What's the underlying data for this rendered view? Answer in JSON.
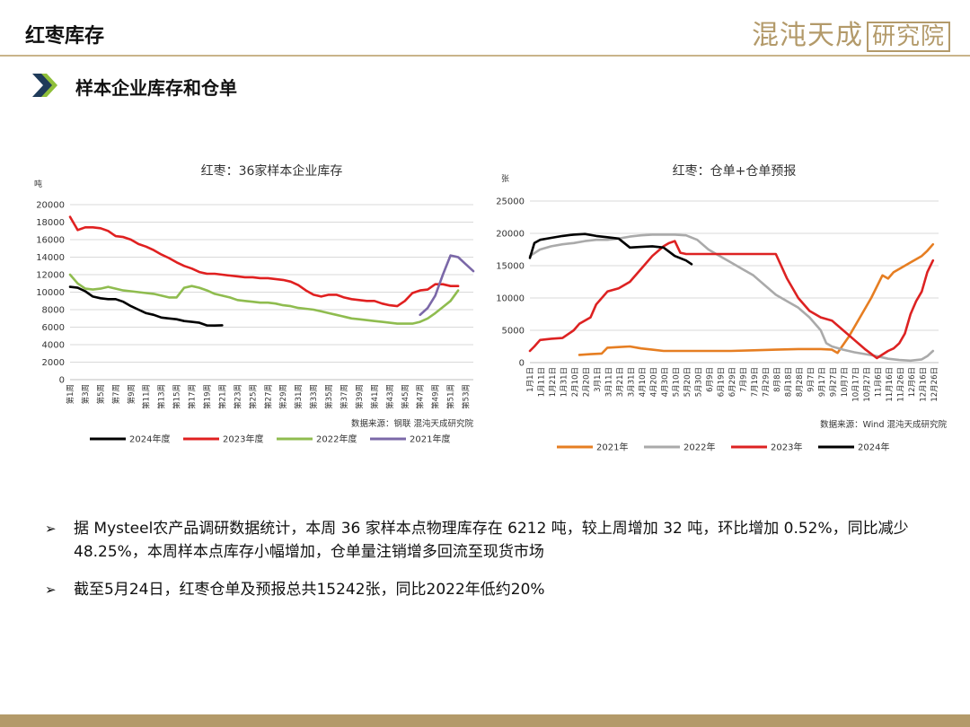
{
  "header": {
    "title": "红枣库存",
    "logo_text": "混沌天成",
    "logo_boxed": "研究院"
  },
  "section": {
    "title": "样本企业库存和仓单"
  },
  "colors": {
    "accent": "#b39a6a",
    "arrow": "#1f3b5a",
    "arrow_light": "#8fbf3a"
  },
  "chart_data": [
    {
      "type": "line",
      "title": "红枣：36家样本企业库存",
      "ylabel": "吨",
      "source": "数据来源：钢联  混沌天成研究院",
      "ylim": [
        0,
        20000
      ],
      "yticks": [
        0,
        2000,
        4000,
        6000,
        8000,
        10000,
        12000,
        14000,
        16000,
        18000,
        20000
      ],
      "categories": [
        "第1周",
        "第3周",
        "第5周",
        "第7周",
        "第9周",
        "第11周",
        "第13周",
        "第15周",
        "第17周",
        "第19周",
        "第21周",
        "第23周",
        "第25周",
        "第27周",
        "第29周",
        "第31周",
        "第33周",
        "第35周",
        "第37周",
        "第39周",
        "第41周",
        "第43周",
        "第45周",
        "第47周",
        "第49周",
        "第51周",
        "第53周"
      ],
      "legend_position": "bottom",
      "series": [
        {
          "name": "2024年度",
          "color": "#000000",
          "x": [
            1,
            2,
            3,
            4,
            5,
            6,
            7,
            8,
            9,
            10,
            11,
            12,
            13,
            14,
            15,
            16,
            17,
            18,
            19,
            20,
            21
          ],
          "values": [
            10600,
            10500,
            10100,
            9500,
            9300,
            9200,
            9200,
            8900,
            8400,
            8000,
            7600,
            7400,
            7100,
            7000,
            6900,
            6700,
            6600,
            6500,
            6200,
            6180,
            6212
          ]
        },
        {
          "name": "2023年度",
          "color": "#e02020",
          "x": [
            1,
            2,
            3,
            4,
            5,
            6,
            7,
            8,
            9,
            10,
            11,
            12,
            13,
            14,
            15,
            16,
            17,
            18,
            19,
            20,
            21,
            22,
            23,
            24,
            25,
            26,
            27,
            28,
            29,
            30,
            31,
            32,
            33,
            34,
            35,
            36,
            37,
            38,
            39,
            40,
            41,
            42,
            43,
            44,
            45,
            46,
            47,
            48,
            49,
            50,
            51,
            52
          ],
          "values": [
            18600,
            17100,
            17400,
            17400,
            17300,
            17000,
            16400,
            16300,
            16000,
            15500,
            15200,
            14800,
            14300,
            13900,
            13400,
            13000,
            12700,
            12300,
            12100,
            12100,
            12000,
            11900,
            11800,
            11700,
            11700,
            11600,
            11600,
            11500,
            11400,
            11200,
            10800,
            10200,
            9700,
            9500,
            9700,
            9700,
            9400,
            9200,
            9100,
            9000,
            9000,
            8700,
            8500,
            8400,
            9000,
            9900,
            10200,
            10300,
            10900,
            10900,
            10700,
            10700
          ]
        },
        {
          "name": "2022年度",
          "color": "#8fbc4f",
          "x": [
            1,
            2,
            3,
            4,
            5,
            6,
            7,
            8,
            9,
            10,
            11,
            12,
            13,
            14,
            15,
            16,
            17,
            18,
            19,
            20,
            21,
            22,
            23,
            24,
            25,
            26,
            27,
            28,
            29,
            30,
            31,
            32,
            33,
            34,
            35,
            36,
            37,
            38,
            39,
            40,
            41,
            42,
            43,
            44,
            45,
            46,
            47,
            48,
            49,
            50,
            51,
            52
          ],
          "values": [
            12000,
            11000,
            10400,
            10300,
            10400,
            10600,
            10400,
            10200,
            10100,
            10000,
            9900,
            9800,
            9600,
            9400,
            9400,
            10500,
            10700,
            10500,
            10200,
            9800,
            9600,
            9400,
            9100,
            9000,
            8900,
            8800,
            8800,
            8700,
            8500,
            8400,
            8200,
            8100,
            8000,
            7800,
            7600,
            7400,
            7200,
            7000,
            6900,
            6800,
            6700,
            6600,
            6500,
            6400,
            6400,
            6400,
            6600,
            7000,
            7600,
            8300,
            9000,
            10200
          ]
        },
        {
          "name": "2021年度",
          "color": "#7b68a8",
          "x": [
            47,
            48,
            49,
            50,
            51,
            52,
            53,
            54
          ],
          "values": [
            7400,
            8200,
            9600,
            12000,
            14200,
            14000,
            13200,
            12400
          ]
        }
      ]
    },
    {
      "type": "line",
      "title": "红枣：仓单+仓单预报",
      "ylabel": "张",
      "source": "数据来源：Wind  混沌天成研究院",
      "ylim": [
        0,
        25000
      ],
      "yticks": [
        0,
        5000,
        10000,
        15000,
        20000,
        25000
      ],
      "xtick_labels": [
        "1月1日",
        "1月11日",
        "1月21日",
        "1月31日",
        "2月10日",
        "2月20日",
        "3月1日",
        "3月11日",
        "3月21日",
        "3月31日",
        "4月10日",
        "4月20日",
        "4月30日",
        "5月10日",
        "5月20日",
        "5月30日",
        "6月9日",
        "6月19日",
        "6月29日",
        "7月9日",
        "7月19日",
        "7月29日",
        "8月8日",
        "8月18日",
        "8月28日",
        "9月7日",
        "9月17日",
        "9月27日",
        "10月7日",
        "10月17日",
        "10月27日",
        "11月6日",
        "11月16日",
        "11月26日",
        "12月6日",
        "12月16日",
        "12月26日"
      ],
      "x_unit": "day_of_year",
      "legend_position": "bottom",
      "series": [
        {
          "name": "2021年",
          "color": "#e67e22",
          "x": [
            45,
            55,
            65,
            70,
            80,
            90,
            100,
            110,
            120,
            140,
            160,
            180,
            200,
            220,
            240,
            260,
            270,
            275,
            285,
            295,
            305,
            315,
            320,
            325,
            330,
            340,
            350,
            355,
            360
          ],
          "values": [
            1200,
            1300,
            1400,
            2300,
            2400,
            2500,
            2200,
            2000,
            1800,
            1800,
            1800,
            1800,
            1900,
            2000,
            2100,
            2100,
            2000,
            1500,
            4000,
            7000,
            10000,
            13500,
            13000,
            14000,
            14500,
            15500,
            16500,
            17300,
            18300
          ]
        },
        {
          "name": "2022年",
          "color": "#aaaaaa",
          "x": [
            1,
            10,
            20,
            30,
            40,
            50,
            60,
            70,
            80,
            90,
            100,
            110,
            120,
            130,
            140,
            150,
            160,
            170,
            180,
            190,
            200,
            210,
            220,
            230,
            240,
            250,
            260,
            265,
            270,
            280,
            290,
            300,
            310,
            320,
            330,
            340,
            350,
            355,
            360
          ],
          "values": [
            16500,
            17500,
            18000,
            18300,
            18500,
            18800,
            19000,
            19000,
            19200,
            19500,
            19700,
            19800,
            19800,
            19800,
            19700,
            19000,
            17500,
            16500,
            15500,
            14500,
            13500,
            12000,
            10500,
            9500,
            8500,
            7000,
            5000,
            3000,
            2500,
            2000,
            1600,
            1300,
            1000,
            600,
            400,
            300,
            500,
            1000,
            1800
          ]
        },
        {
          "name": "2023年",
          "color": "#dd2222",
          "x": [
            1,
            5,
            10,
            20,
            30,
            40,
            45,
            55,
            60,
            70,
            80,
            90,
            100,
            110,
            120,
            125,
            130,
            135,
            140,
            150,
            160,
            170,
            180,
            190,
            200,
            210,
            220,
            230,
            240,
            250,
            260,
            270,
            280,
            290,
            300,
            310,
            320,
            325,
            330,
            335,
            340,
            345,
            350,
            355,
            360
          ],
          "values": [
            1800,
            2500,
            3500,
            3700,
            3800,
            5000,
            6000,
            7000,
            9000,
            11000,
            11500,
            12500,
            14500,
            16500,
            18000,
            18500,
            18800,
            17000,
            16800,
            16800,
            16800,
            16800,
            16800,
            16800,
            16800,
            16800,
            16800,
            13000,
            10000,
            8000,
            7000,
            6500,
            5000,
            3500,
            2000,
            700,
            1800,
            2200,
            3000,
            4500,
            7500,
            9500,
            11000,
            14000,
            15800
          ]
        },
        {
          "name": "2024年",
          "color": "#000000",
          "x": [
            1,
            5,
            10,
            20,
            30,
            40,
            50,
            60,
            70,
            80,
            90,
            100,
            110,
            120,
            130,
            140,
            145
          ],
          "values": [
            16200,
            18500,
            19000,
            19300,
            19600,
            19800,
            19900,
            19600,
            19400,
            19200,
            17800,
            17900,
            18000,
            17800,
            16500,
            15800,
            15242
          ]
        }
      ]
    }
  ],
  "bullets": [
    {
      "mark": "➢",
      "text": "据 Mysteel农产品调研数据统计，本周 36 家样本点物理库存在 6212 吨，较上周增加 32 吨，环比增加 0.52%，同比减少48.25%，本周样本点库存小幅增加，仓单量注销增多回流至现货市场"
    },
    {
      "mark": "➢",
      "text": "截至5月24日，红枣仓单及预报总共15242张，同比2022年低约20%"
    }
  ]
}
